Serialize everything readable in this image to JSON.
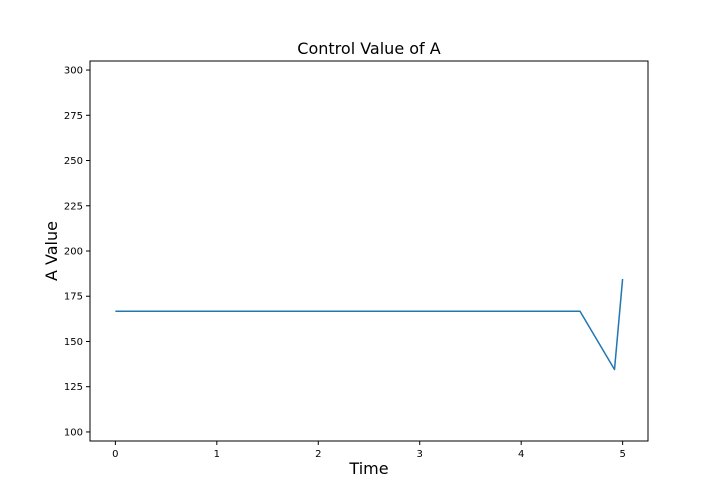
{
  "chart_data": {
    "type": "line",
    "title": "Control Value of A",
    "xlabel": "Time",
    "ylabel": "A Value",
    "xlim": [
      -0.25,
      5.25
    ],
    "ylim": [
      95,
      305
    ],
    "xticks": [
      0,
      1,
      2,
      3,
      4,
      5
    ],
    "yticks": [
      100,
      125,
      150,
      175,
      200,
      225,
      250,
      275,
      300
    ],
    "grid": false,
    "series": [
      {
        "color": "#1f77b4",
        "x": [
          0,
          4.58,
          4.92,
          5.0
        ],
        "y": [
          166.7,
          166.7,
          134.5,
          184.5
        ]
      }
    ]
  }
}
